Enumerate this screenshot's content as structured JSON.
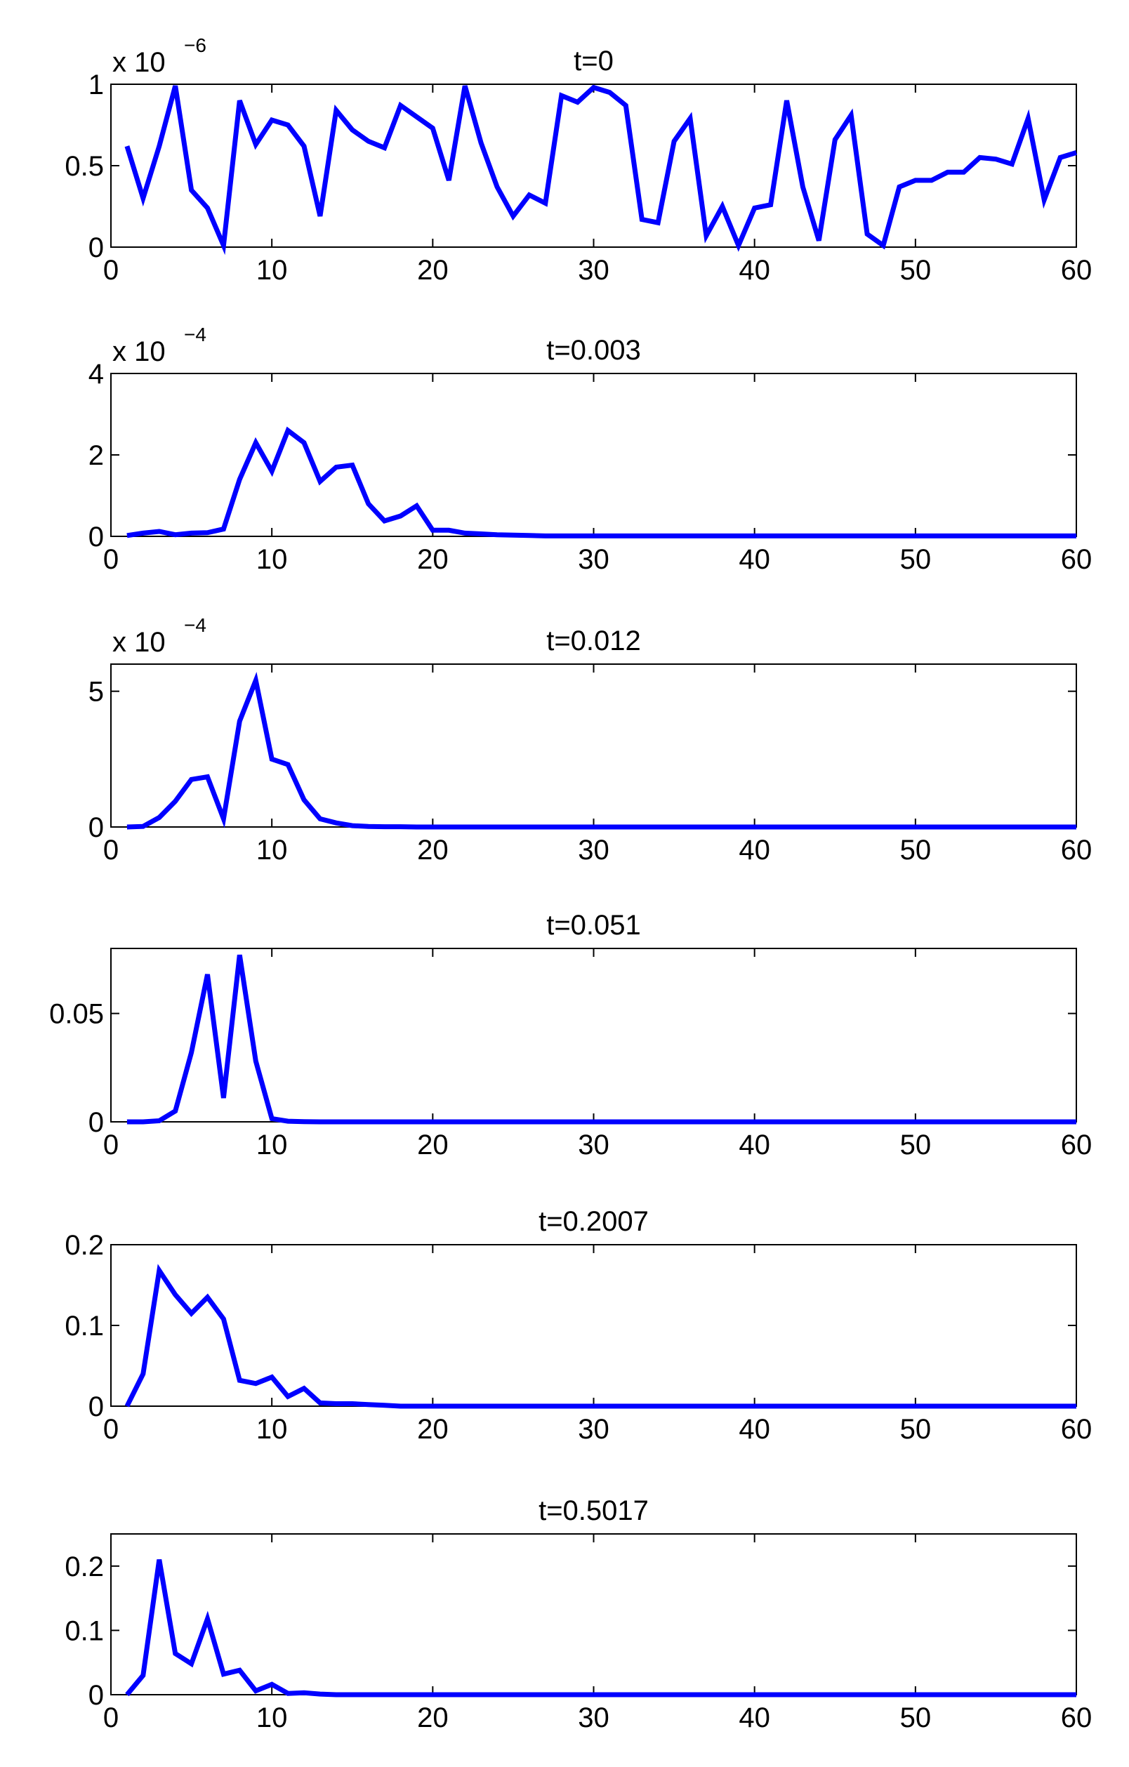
{
  "chart_data": [
    {
      "type": "line",
      "title": "t=0",
      "xlabel": "",
      "ylabel": "",
      "xlim": [
        0,
        60
      ],
      "ylim": [
        0,
        1
      ],
      "x_ticks": [
        0,
        10,
        20,
        30,
        40,
        50,
        60
      ],
      "x_tick_labels": [
        "0",
        "10",
        "20",
        "30",
        "40",
        "50",
        "60"
      ],
      "y_ticks": [
        0,
        0.5,
        1
      ],
      "y_tick_labels": [
        "0",
        "0.5",
        "1"
      ],
      "y_multiplier": {
        "base": "x 10",
        "exponent": "−6"
      },
      "grid": false,
      "color": "#0000ff",
      "x": [
        1,
        2,
        3,
        4,
        5,
        6,
        7,
        8,
        9,
        10,
        11,
        12,
        13,
        14,
        15,
        16,
        17,
        18,
        19,
        20,
        21,
        22,
        23,
        24,
        25,
        26,
        27,
        28,
        29,
        30,
        31,
        32,
        33,
        34,
        35,
        36,
        37,
        38,
        39,
        40,
        41,
        42,
        43,
        44,
        45,
        46,
        47,
        48,
        49,
        50,
        51,
        52,
        53,
        54,
        55,
        56,
        57,
        58,
        59,
        60
      ],
      "y": [
        0.62,
        0.3,
        0.62,
        0.99,
        0.35,
        0.24,
        0.01,
        0.9,
        0.63,
        0.78,
        0.75,
        0.62,
        0.19,
        0.84,
        0.72,
        0.65,
        0.61,
        0.87,
        0.8,
        0.73,
        0.41,
        0.99,
        0.64,
        0.37,
        0.19,
        0.32,
        0.27,
        0.93,
        0.89,
        0.98,
        0.95,
        0.87,
        0.17,
        0.15,
        0.65,
        0.79,
        0.07,
        0.25,
        0.01,
        0.24,
        0.26,
        0.9,
        0.37,
        0.04,
        0.66,
        0.81,
        0.08,
        0.01,
        0.37,
        0.41,
        0.41,
        0.46,
        0.46,
        0.55,
        0.54,
        0.51,
        0.79,
        0.29,
        0.55,
        0.58
      ]
    },
    {
      "type": "line",
      "title": "t=0.003",
      "xlabel": "",
      "ylabel": "",
      "xlim": [
        0,
        60
      ],
      "ylim": [
        0,
        4
      ],
      "x_ticks": [
        0,
        10,
        20,
        30,
        40,
        50,
        60
      ],
      "x_tick_labels": [
        "0",
        "10",
        "20",
        "30",
        "40",
        "50",
        "60"
      ],
      "y_ticks": [
        0,
        2,
        4
      ],
      "y_tick_labels": [
        "0",
        "2",
        "4"
      ],
      "y_multiplier": {
        "base": "x 10",
        "exponent": "−4"
      },
      "grid": false,
      "color": "#0000ff",
      "x": [
        1,
        2,
        3,
        4,
        5,
        6,
        7,
        8,
        9,
        10,
        11,
        12,
        13,
        14,
        15,
        16,
        17,
        18,
        19,
        20,
        21,
        22,
        23,
        24,
        25,
        26,
        27,
        28,
        29,
        30,
        31,
        32,
        33,
        34,
        35,
        36,
        37,
        38,
        39,
        40,
        41,
        42,
        43,
        44,
        45,
        46,
        47,
        48,
        49,
        50,
        51,
        52,
        53,
        54,
        55,
        56,
        57,
        58,
        59,
        60
      ],
      "y": [
        0.02,
        0.08,
        0.12,
        0.04,
        0.08,
        0.09,
        0.18,
        1.4,
        2.3,
        1.6,
        2.6,
        2.3,
        1.35,
        1.7,
        1.75,
        0.8,
        0.38,
        0.5,
        0.75,
        0.15,
        0.15,
        0.08,
        0.06,
        0.04,
        0.03,
        0.02,
        0.01,
        0.01,
        0.01,
        0.01,
        0.01,
        0.01,
        0.01,
        0.01,
        0.01,
        0.01,
        0.01,
        0.01,
        0.01,
        0.01,
        0.01,
        0.01,
        0.01,
        0.01,
        0.01,
        0.01,
        0.01,
        0.01,
        0.01,
        0.01,
        0.01,
        0.01,
        0.01,
        0.01,
        0.01,
        0.01,
        0.01,
        0.01,
        0.01,
        0.01
      ]
    },
    {
      "type": "line",
      "title": "t=0.012",
      "xlabel": "",
      "ylabel": "",
      "xlim": [
        0,
        60
      ],
      "ylim": [
        0,
        6
      ],
      "x_ticks": [
        0,
        10,
        20,
        30,
        40,
        50,
        60
      ],
      "x_tick_labels": [
        "0",
        "10",
        "20",
        "30",
        "40",
        "50",
        "60"
      ],
      "y_ticks": [
        0,
        5
      ],
      "y_tick_labels": [
        "0",
        "5"
      ],
      "y_multiplier": {
        "base": "x 10",
        "exponent": "−4"
      },
      "grid": false,
      "color": "#0000ff",
      "x": [
        1,
        2,
        3,
        4,
        5,
        6,
        7,
        8,
        9,
        10,
        11,
        12,
        13,
        14,
        15,
        16,
        17,
        18,
        19,
        20,
        21,
        22,
        23,
        24,
        25,
        26,
        27,
        28,
        29,
        30,
        31,
        32,
        33,
        34,
        35,
        36,
        37,
        38,
        39,
        40,
        41,
        42,
        43,
        44,
        45,
        46,
        47,
        48,
        49,
        50,
        51,
        52,
        53,
        54,
        55,
        56,
        57,
        58,
        59,
        60
      ],
      "y": [
        0.0,
        0.02,
        0.35,
        0.95,
        1.75,
        1.85,
        0.3,
        3.9,
        5.4,
        2.5,
        2.3,
        1.0,
        0.3,
        0.15,
        0.05,
        0.02,
        0.01,
        0.01,
        0.0,
        0.0,
        0.0,
        0.0,
        0.0,
        0.0,
        0.0,
        0.0,
        0.0,
        0.0,
        0.0,
        0.0,
        0.0,
        0.0,
        0.0,
        0.0,
        0.0,
        0.0,
        0.0,
        0.0,
        0.0,
        0.0,
        0.0,
        0.0,
        0.0,
        0.0,
        0.0,
        0.0,
        0.0,
        0.0,
        0.0,
        0.0,
        0.0,
        0.0,
        0.0,
        0.0,
        0.0,
        0.0,
        0.0,
        0.0,
        0.0,
        0.0
      ]
    },
    {
      "type": "line",
      "title": "t=0.051",
      "xlabel": "",
      "ylabel": "",
      "xlim": [
        0,
        60
      ],
      "ylim": [
        0,
        0.08
      ],
      "x_ticks": [
        0,
        10,
        20,
        30,
        40,
        50,
        60
      ],
      "x_tick_labels": [
        "0",
        "10",
        "20",
        "30",
        "40",
        "50",
        "60"
      ],
      "y_ticks": [
        0,
        0.05
      ],
      "y_tick_labels": [
        "0",
        "0.05"
      ],
      "grid": false,
      "color": "#0000ff",
      "x": [
        1,
        2,
        3,
        4,
        5,
        6,
        7,
        8,
        9,
        10,
        11,
        12,
        13,
        14,
        15,
        16,
        17,
        18,
        19,
        20,
        21,
        22,
        23,
        24,
        25,
        26,
        27,
        28,
        29,
        30,
        31,
        32,
        33,
        34,
        35,
        36,
        37,
        38,
        39,
        40,
        41,
        42,
        43,
        44,
        45,
        46,
        47,
        48,
        49,
        50,
        51,
        52,
        53,
        54,
        55,
        56,
        57,
        58,
        59,
        60
      ],
      "y": [
        0.0,
        0.0,
        0.0005,
        0.005,
        0.032,
        0.068,
        0.011,
        0.077,
        0.028,
        0.0015,
        0.0003,
        0.0001,
        0.0,
        0.0,
        0.0,
        0.0,
        0.0,
        0.0,
        0.0,
        0.0,
        0.0,
        0.0,
        0.0,
        0.0,
        0.0,
        0.0,
        0.0,
        0.0,
        0.0,
        0.0,
        0.0,
        0.0,
        0.0,
        0.0,
        0.0,
        0.0,
        0.0,
        0.0,
        0.0,
        0.0,
        0.0,
        0.0,
        0.0,
        0.0,
        0.0,
        0.0,
        0.0,
        0.0,
        0.0,
        0.0,
        0.0,
        0.0,
        0.0,
        0.0,
        0.0,
        0.0,
        0.0,
        0.0,
        0.0,
        0.0
      ]
    },
    {
      "type": "line",
      "title": "t=0.2007",
      "xlabel": "",
      "ylabel": "",
      "xlim": [
        0,
        60
      ],
      "ylim": [
        0,
        0.2
      ],
      "x_ticks": [
        0,
        10,
        20,
        30,
        40,
        50,
        60
      ],
      "x_tick_labels": [
        "0",
        "10",
        "20",
        "30",
        "40",
        "50",
        "60"
      ],
      "y_ticks": [
        0,
        0.1,
        0.2
      ],
      "y_tick_labels": [
        "0",
        "0.1",
        "0.2"
      ],
      "grid": false,
      "color": "#0000ff",
      "x": [
        1,
        2,
        3,
        4,
        5,
        6,
        7,
        8,
        9,
        10,
        11,
        12,
        13,
        14,
        15,
        16,
        17,
        18,
        19,
        20,
        21,
        22,
        23,
        24,
        25,
        26,
        27,
        28,
        29,
        30,
        31,
        32,
        33,
        34,
        35,
        36,
        37,
        38,
        39,
        40,
        41,
        42,
        43,
        44,
        45,
        46,
        47,
        48,
        49,
        50,
        51,
        52,
        53,
        54,
        55,
        56,
        57,
        58,
        59,
        60
      ],
      "y": [
        0.0,
        0.04,
        0.168,
        0.138,
        0.115,
        0.135,
        0.108,
        0.032,
        0.028,
        0.036,
        0.012,
        0.022,
        0.004,
        0.003,
        0.003,
        0.002,
        0.001,
        0.0,
        0.0,
        0.0,
        0.0,
        0.0,
        0.0,
        0.0,
        0.0,
        0.0,
        0.0,
        0.0,
        0.0,
        0.0,
        0.0,
        0.0,
        0.0,
        0.0,
        0.0,
        0.0,
        0.0,
        0.0,
        0.0,
        0.0,
        0.0,
        0.0,
        0.0,
        0.0,
        0.0,
        0.0,
        0.0,
        0.0,
        0.0,
        0.0,
        0.0,
        0.0,
        0.0,
        0.0,
        0.0,
        0.0,
        0.0,
        0.0,
        0.0,
        0.0
      ]
    },
    {
      "type": "line",
      "title": "t=0.5017",
      "xlabel": "",
      "ylabel": "",
      "xlim": [
        0,
        60
      ],
      "ylim": [
        0,
        0.25
      ],
      "x_ticks": [
        0,
        10,
        20,
        30,
        40,
        50,
        60
      ],
      "x_tick_labels": [
        "0",
        "10",
        "20",
        "30",
        "40",
        "50",
        "60"
      ],
      "y_ticks": [
        0,
        0.1,
        0.2
      ],
      "y_tick_labels": [
        "0",
        "0.1",
        "0.2"
      ],
      "grid": false,
      "color": "#0000ff",
      "x": [
        1,
        2,
        3,
        4,
        5,
        6,
        7,
        8,
        9,
        10,
        11,
        12,
        13,
        14,
        15,
        16,
        17,
        18,
        19,
        20,
        21,
        22,
        23,
        24,
        25,
        26,
        27,
        28,
        29,
        30,
        31,
        32,
        33,
        34,
        35,
        36,
        37,
        38,
        39,
        40,
        41,
        42,
        43,
        44,
        45,
        46,
        47,
        48,
        49,
        50,
        51,
        52,
        53,
        54,
        55,
        56,
        57,
        58,
        59,
        60
      ],
      "y": [
        0.0,
        0.03,
        0.21,
        0.064,
        0.048,
        0.118,
        0.032,
        0.038,
        0.006,
        0.016,
        0.002,
        0.003,
        0.001,
        0.0,
        0.0,
        0.0,
        0.0,
        0.0,
        0.0,
        0.0,
        0.0,
        0.0,
        0.0,
        0.0,
        0.0,
        0.0,
        0.0,
        0.0,
        0.0,
        0.0,
        0.0,
        0.0,
        0.0,
        0.0,
        0.0,
        0.0,
        0.0,
        0.0,
        0.0,
        0.0,
        0.0,
        0.0,
        0.0,
        0.0,
        0.0,
        0.0,
        0.0,
        0.0,
        0.0,
        0.0,
        0.0,
        0.0,
        0.0,
        0.0,
        0.0,
        0.0,
        0.0,
        0.0,
        0.0,
        0.0
      ]
    }
  ]
}
